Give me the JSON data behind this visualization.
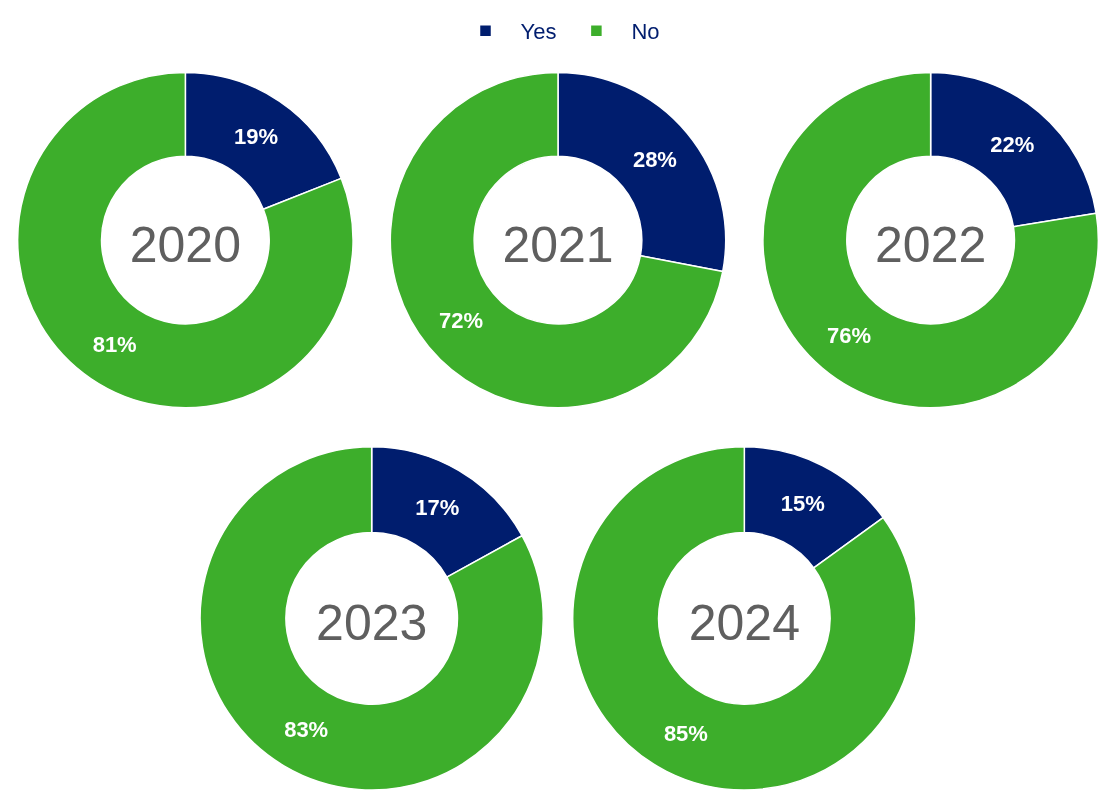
{
  "chart_data": [
    {
      "type": "donut",
      "title": "2020",
      "categories": [
        "Yes",
        "No"
      ],
      "values": [
        19,
        81
      ],
      "value_labels": [
        "19%",
        "81%"
      ],
      "colors": [
        "#001d6e",
        "#3dae2b"
      ],
      "legend": "top"
    },
    {
      "type": "donut",
      "title": "2021",
      "categories": [
        null,
        null
      ],
      "values": [
        28,
        72
      ],
      "value_labels": [
        "28%",
        "72%"
      ],
      "colors": [
        "#001d6e",
        "#3dae2b"
      ]
    },
    {
      "type": "donut",
      "title": "2022",
      "categories": [
        null,
        null
      ],
      "values": [
        22,
        76
      ],
      "value_labels": [
        "22%",
        "76%"
      ],
      "colors": [
        "#001d6e",
        "#3dae2b"
      ]
    },
    {
      "type": "donut",
      "title": "2023",
      "categories": [
        null,
        null
      ],
      "values": [
        17,
        83
      ],
      "value_labels": [
        "17%",
        "83%"
      ],
      "colors": [
        "#001d6e",
        "#3dae2b"
      ]
    },
    {
      "type": "donut",
      "title": "2024",
      "categories": [
        null,
        null
      ],
      "values": [
        15,
        85
      ],
      "value_labels": [
        "15%",
        "85%"
      ],
      "colors": [
        "#001d6e",
        "#3dae2b"
      ]
    }
  ]
}
